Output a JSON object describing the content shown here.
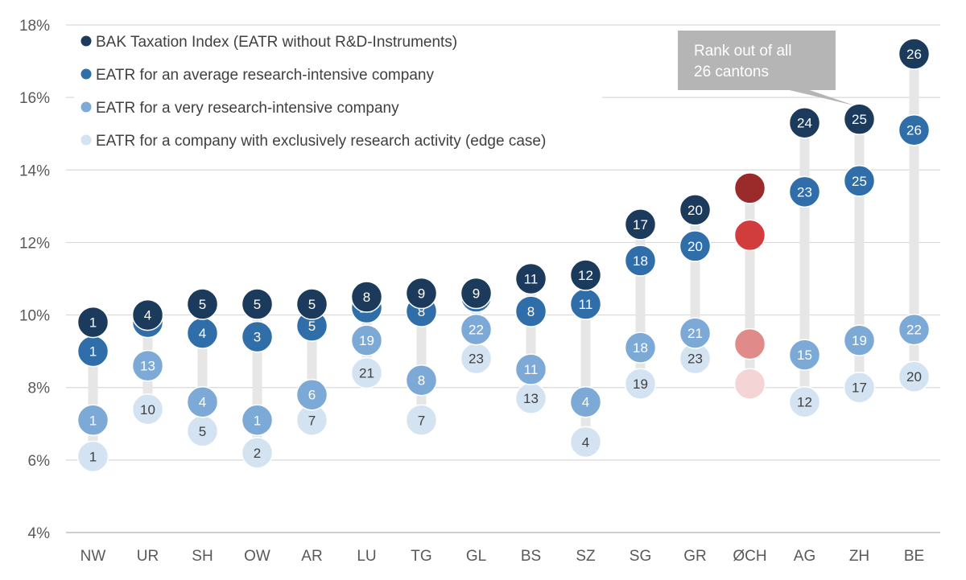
{
  "chart_data": {
    "type": "scatter",
    "title": "",
    "xlabel": "",
    "ylabel": "",
    "ylim": [
      4,
      18
    ],
    "y_ticks": [
      4,
      6,
      8,
      10,
      12,
      14,
      16,
      18
    ],
    "y_tick_suffix": "%",
    "categories": [
      "NW",
      "UR",
      "SH",
      "OW",
      "AR",
      "LU",
      "TG",
      "GL",
      "BS",
      "SZ",
      "SG",
      "GR",
      "ØCH",
      "AG",
      "ZH",
      "BE"
    ],
    "series": [
      {
        "name": "BAK Taxation Index (EATR without R&D-Instruments)",
        "color": "#1b3a5c",
        "label_color": "#ffffff",
        "values": [
          9.8,
          10.0,
          10.3,
          10.3,
          10.3,
          10.5,
          10.6,
          10.6,
          11.0,
          11.1,
          12.5,
          12.9,
          13.5,
          15.3,
          15.4,
          17.2
        ],
        "ranks": [
          "1",
          "4",
          "5",
          "5",
          "5",
          "8",
          "9",
          "9",
          "11",
          "12",
          "17",
          "20",
          "",
          "24",
          "25",
          "26"
        ]
      },
      {
        "name": "EATR for an average research-intensive company",
        "color": "#2f6ea8",
        "label_color": "#ffffff",
        "values": [
          9.0,
          9.8,
          9.5,
          9.4,
          9.7,
          10.2,
          10.1,
          10.5,
          10.1,
          10.3,
          11.5,
          11.9,
          12.2,
          13.4,
          13.7,
          15.1
        ],
        "ranks": [
          "1",
          "6",
          "4",
          "3",
          "5",
          "10",
          "8",
          "12",
          "8",
          "11",
          "18",
          "20",
          "",
          "23",
          "25",
          "26"
        ]
      },
      {
        "name": "EATR for a very research-intensive company",
        "color": "#7ca9d6",
        "label_color": "#ffffff",
        "values": [
          7.1,
          8.6,
          7.6,
          7.1,
          7.8,
          9.3,
          8.2,
          9.6,
          8.5,
          7.6,
          9.1,
          9.5,
          9.2,
          8.9,
          9.3,
          9.6
        ],
        "ranks": [
          "1",
          "13",
          "4",
          "1",
          "6",
          "19",
          "8",
          "22",
          "11",
          "4",
          "18",
          "21",
          "",
          "15",
          "19",
          "22"
        ]
      },
      {
        "name": "EATR for a company with exclusively research activity (edge case)",
        "color": "#d3e3f2",
        "label_color": "#404040",
        "values": [
          6.1,
          7.4,
          6.8,
          6.2,
          7.1,
          8.4,
          7.1,
          8.8,
          7.7,
          6.5,
          8.1,
          8.8,
          8.1,
          7.6,
          8.0,
          8.3
        ],
        "ranks": [
          "1",
          "10",
          "5",
          "2",
          "7",
          "21",
          "7",
          "23",
          "13",
          "4",
          "19",
          "23",
          "",
          "12",
          "17",
          "20"
        ]
      }
    ],
    "highlight": {
      "category": "ØCH",
      "colors": [
        "#9b2a2a",
        "#d13c3c",
        "#e08a8a",
        "#f4d4d4"
      ]
    },
    "annotation": {
      "lines": [
        "Rank out of all",
        "26 cantons"
      ],
      "points_to_category": "ZH",
      "box_color": "#b5b5b5"
    }
  }
}
